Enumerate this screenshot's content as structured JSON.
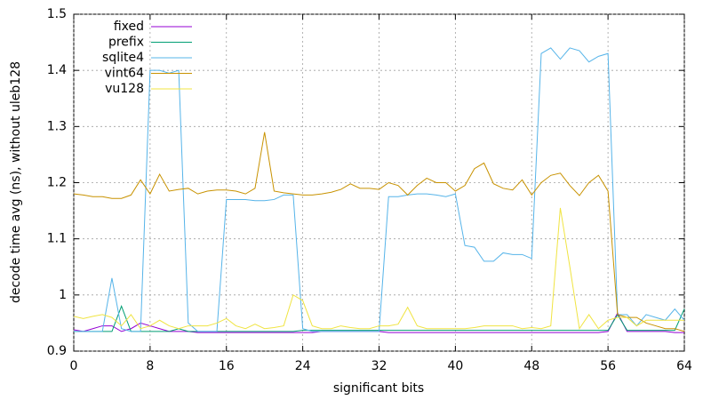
{
  "chart_data": {
    "type": "line",
    "xlabel": "significant bits",
    "ylabel": "decode time avg (ns), without uleb128",
    "x": [
      0,
      1,
      2,
      3,
      4,
      5,
      6,
      7,
      8,
      9,
      10,
      11,
      12,
      13,
      14,
      15,
      16,
      17,
      18,
      19,
      20,
      21,
      22,
      23,
      24,
      25,
      26,
      27,
      28,
      29,
      30,
      31,
      32,
      33,
      34,
      35,
      36,
      37,
      38,
      39,
      40,
      41,
      42,
      43,
      44,
      45,
      46,
      47,
      48,
      49,
      50,
      51,
      52,
      53,
      54,
      55,
      56,
      57,
      58,
      59,
      60,
      61,
      62,
      63,
      64
    ],
    "xlim": [
      0,
      64
    ],
    "xticks": [
      0,
      8,
      16,
      24,
      32,
      40,
      48,
      56,
      64
    ],
    "ylim": [
      0.9,
      1.5
    ],
    "yticks": [
      0.9,
      1,
      1.1,
      1.2,
      1.3,
      1.4,
      1.5
    ],
    "grid": true,
    "legend": "top-left",
    "series": [
      {
        "name": "fixed",
        "color": "#9400d3",
        "values": [
          0.938,
          0.935,
          0.94,
          0.945,
          0.945,
          0.935,
          0.94,
          0.95,
          0.945,
          0.94,
          0.935,
          0.935,
          0.935,
          0.933,
          0.933,
          0.933,
          0.933,
          0.933,
          0.933,
          0.933,
          0.933,
          0.933,
          0.933,
          0.933,
          0.933,
          0.933,
          0.935,
          0.935,
          0.935,
          0.935,
          0.935,
          0.935,
          0.935,
          0.933,
          0.933,
          0.933,
          0.933,
          0.933,
          0.933,
          0.933,
          0.933,
          0.933,
          0.933,
          0.933,
          0.933,
          0.933,
          0.933,
          0.933,
          0.933,
          0.933,
          0.933,
          0.933,
          0.933,
          0.933,
          0.933,
          0.933,
          0.935,
          0.968,
          0.935,
          0.935,
          0.935,
          0.935,
          0.935,
          0.933,
          0.933
        ]
      },
      {
        "name": "prefix",
        "color": "#009e73",
        "values": [
          0.935,
          0.935,
          0.935,
          0.935,
          0.935,
          0.98,
          0.935,
          0.935,
          0.935,
          0.935,
          0.935,
          0.94,
          0.935,
          0.935,
          0.935,
          0.935,
          0.935,
          0.935,
          0.935,
          0.935,
          0.935,
          0.935,
          0.935,
          0.935,
          0.937,
          0.937,
          0.937,
          0.937,
          0.937,
          0.937,
          0.937,
          0.937,
          0.937,
          0.937,
          0.937,
          0.937,
          0.937,
          0.937,
          0.937,
          0.937,
          0.937,
          0.937,
          0.937,
          0.937,
          0.937,
          0.937,
          0.937,
          0.937,
          0.937,
          0.937,
          0.937,
          0.937,
          0.937,
          0.937,
          0.937,
          0.937,
          0.937,
          0.965,
          0.937,
          0.937,
          0.937,
          0.937,
          0.937,
          0.937,
          0.975
        ]
      },
      {
        "name": "sqlite4",
        "color": "#56b4e9",
        "values": [
          0.935,
          0.935,
          0.935,
          0.935,
          1.03,
          0.94,
          0.935,
          0.935,
          1.4,
          1.4,
          1.395,
          1.4,
          0.95,
          0.935,
          0.935,
          0.935,
          1.17,
          1.17,
          1.17,
          1.168,
          1.168,
          1.17,
          1.178,
          1.178,
          0.94,
          0.935,
          0.935,
          0.935,
          0.935,
          0.935,
          0.935,
          0.935,
          0.935,
          1.175,
          1.175,
          1.178,
          1.18,
          1.18,
          1.178,
          1.175,
          1.18,
          1.088,
          1.085,
          1.06,
          1.06,
          1.075,
          1.072,
          1.072,
          1.065,
          1.43,
          1.44,
          1.42,
          1.44,
          1.435,
          1.415,
          1.425,
          1.43,
          0.965,
          0.965,
          0.945,
          0.965,
          0.96,
          0.955,
          0.975,
          0.955
        ]
      },
      {
        "name": "vint64",
        "color": "#c89200",
        "values": [
          1.18,
          1.178,
          1.175,
          1.175,
          1.172,
          1.172,
          1.178,
          1.205,
          1.18,
          1.215,
          1.185,
          1.188,
          1.19,
          1.18,
          1.185,
          1.187,
          1.187,
          1.185,
          1.18,
          1.19,
          1.29,
          1.185,
          1.182,
          1.18,
          1.178,
          1.178,
          1.18,
          1.183,
          1.188,
          1.198,
          1.19,
          1.19,
          1.188,
          1.2,
          1.195,
          1.178,
          1.195,
          1.208,
          1.2,
          1.2,
          1.185,
          1.195,
          1.225,
          1.235,
          1.198,
          1.19,
          1.187,
          1.205,
          1.178,
          1.2,
          1.213,
          1.217,
          1.195,
          1.177,
          1.2,
          1.213,
          1.185,
          0.965,
          0.96,
          0.96,
          0.95,
          0.945,
          0.94,
          0.94,
          0.935
        ]
      },
      {
        "name": "vu128",
        "color": "#f0e442",
        "values": [
          0.962,
          0.958,
          0.962,
          0.965,
          0.96,
          0.945,
          0.965,
          0.94,
          0.945,
          0.955,
          0.945,
          0.94,
          0.945,
          0.945,
          0.945,
          0.95,
          0.958,
          0.945,
          0.94,
          0.948,
          0.94,
          0.942,
          0.945,
          1.0,
          0.99,
          0.945,
          0.94,
          0.94,
          0.945,
          0.942,
          0.94,
          0.94,
          0.945,
          0.945,
          0.948,
          0.978,
          0.945,
          0.94,
          0.94,
          0.94,
          0.94,
          0.94,
          0.942,
          0.945,
          0.945,
          0.945,
          0.945,
          0.94,
          0.942,
          0.94,
          0.945,
          1.155,
          1.05,
          0.94,
          0.965,
          0.94,
          0.955,
          0.96,
          0.96,
          0.945,
          0.955,
          0.955,
          0.955,
          0.955,
          0.955
        ]
      }
    ]
  }
}
